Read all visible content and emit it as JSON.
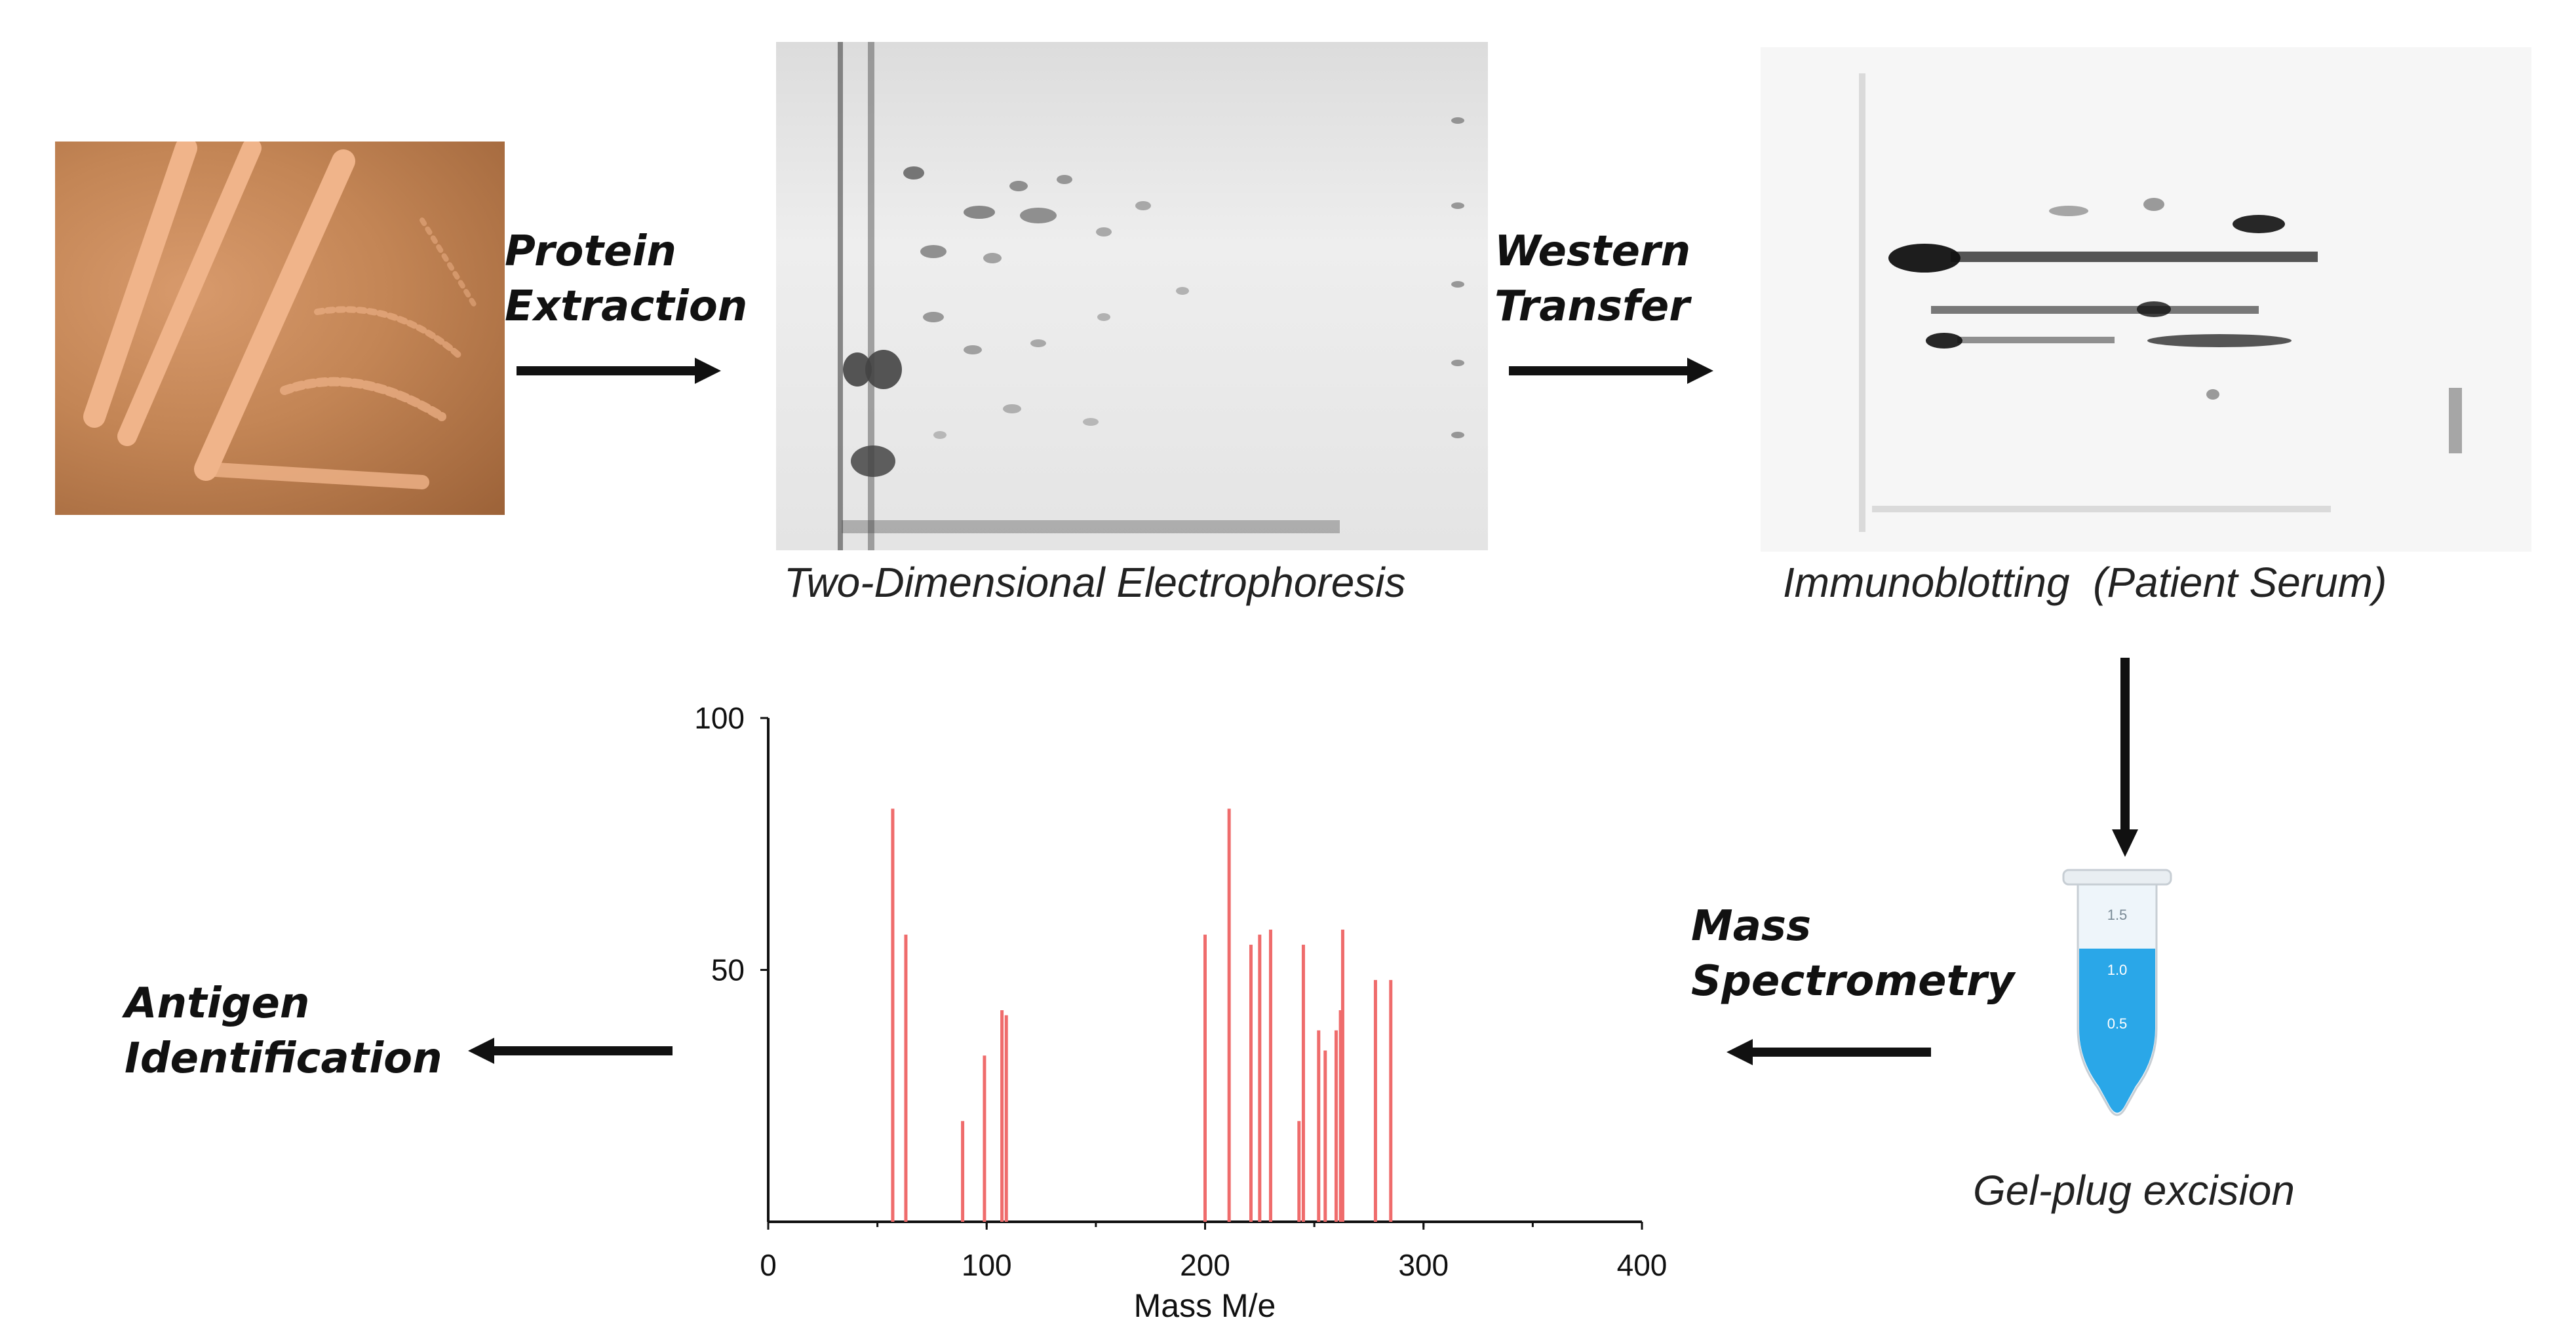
{
  "steps": {
    "protein_extraction": [
      "Protein",
      "Extraction"
    ],
    "western_transfer": [
      "Western",
      "Transfer"
    ],
    "mass_spectrometry": [
      "Mass",
      "Spectrometry"
    ],
    "antigen_identification": [
      "Antigen",
      "Identification"
    ]
  },
  "captions": {
    "electrophoresis": "Two-Dimensional Electrophoresis",
    "immunoblotting": "Immunoblotting  (Patient Serum)",
    "gel_plug": "Gel-plug excision"
  },
  "tube": {
    "marks": [
      "1.5",
      "1.0",
      "0.5"
    ],
    "fill_color": "#2aa7e8"
  },
  "colors": {
    "arrow": "#111111",
    "culture": "#c38555",
    "bars": "#ef6c6c"
  },
  "chart_data": {
    "type": "bar",
    "xlabel": "Mass M/e",
    "ylabel": "",
    "xlim": [
      0,
      400
    ],
    "ylim": [
      0,
      100
    ],
    "xticks": [
      0,
      100,
      200,
      300,
      400
    ],
    "yticks": [
      50,
      100
    ],
    "x": [
      57,
      63,
      89,
      99,
      107,
      109,
      200,
      211,
      221,
      225,
      230,
      243,
      245,
      252,
      255,
      260,
      262,
      263,
      278,
      285
    ],
    "values": [
      82,
      57,
      20,
      33,
      42,
      41,
      57,
      82,
      55,
      57,
      58,
      20,
      55,
      38,
      34,
      38,
      42,
      58,
      48,
      48
    ]
  }
}
